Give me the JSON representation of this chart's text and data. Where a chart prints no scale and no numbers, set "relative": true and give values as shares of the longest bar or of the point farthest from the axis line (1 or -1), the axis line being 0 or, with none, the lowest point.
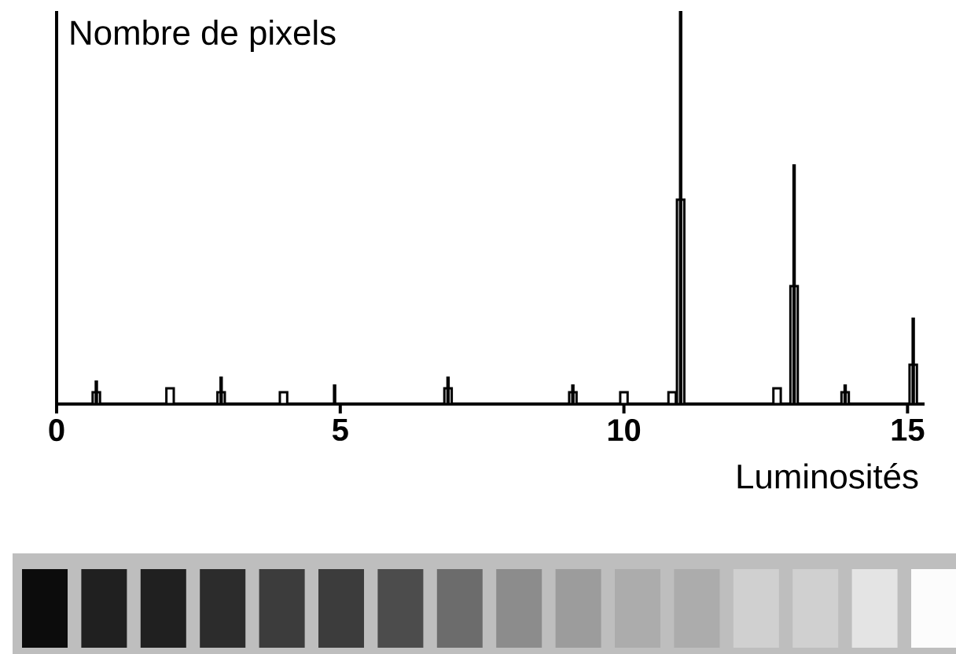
{
  "chart_data": {
    "type": "bar",
    "relative": true,
    "xlabel": "Luminosités",
    "ylabel": "Nombre de pixels",
    "xlim": [
      0,
      15.3
    ],
    "xticks": [
      0,
      5,
      10,
      15
    ],
    "series": [
      {
        "color": "#ffffff",
        "x": [
          0.7,
          2.0,
          2.9,
          4.0,
          6.9,
          9.1,
          10.0,
          10.85,
          11.0,
          12.7,
          13.0,
          13.9,
          15.1
        ],
        "values": [
          0.03,
          0.04,
          0.03,
          0.03,
          0.04,
          0.03,
          0.03,
          0.03,
          0.52,
          0.04,
          0.3,
          0.03,
          0.1
        ]
      },
      {
        "color": "#000000",
        "x": [
          0.7,
          2.9,
          4.9,
          6.9,
          9.1,
          11.0,
          13.0,
          13.9,
          15.1
        ],
        "values": [
          0.06,
          0.07,
          0.05,
          0.07,
          0.05,
          1,
          0.61,
          0.05,
          0.22
        ]
      }
    ]
  }
}
